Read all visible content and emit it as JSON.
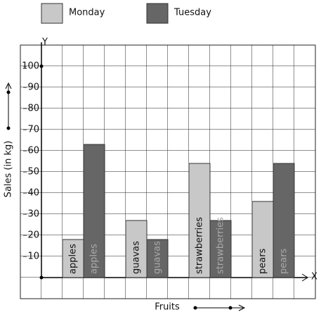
{
  "chart_data": {
    "type": "bar",
    "x_label": "Fruits",
    "y_label": "Sales (in kg)",
    "x_axis_name": "X",
    "y_axis_name": "Y",
    "categories": [
      "apples",
      "guavas",
      "strawberries",
      "pears"
    ],
    "series": [
      {
        "name": "Monday",
        "color": "#c8c8c8",
        "values": [
          18,
          27,
          54,
          36
        ]
      },
      {
        "name": "Tuesday",
        "color": "#666666",
        "values": [
          63,
          18,
          27,
          54
        ]
      }
    ],
    "ylim": [
      0,
      110
    ],
    "yticks": [
      10,
      20,
      30,
      40,
      50,
      60,
      70,
      80,
      90,
      100
    ]
  }
}
